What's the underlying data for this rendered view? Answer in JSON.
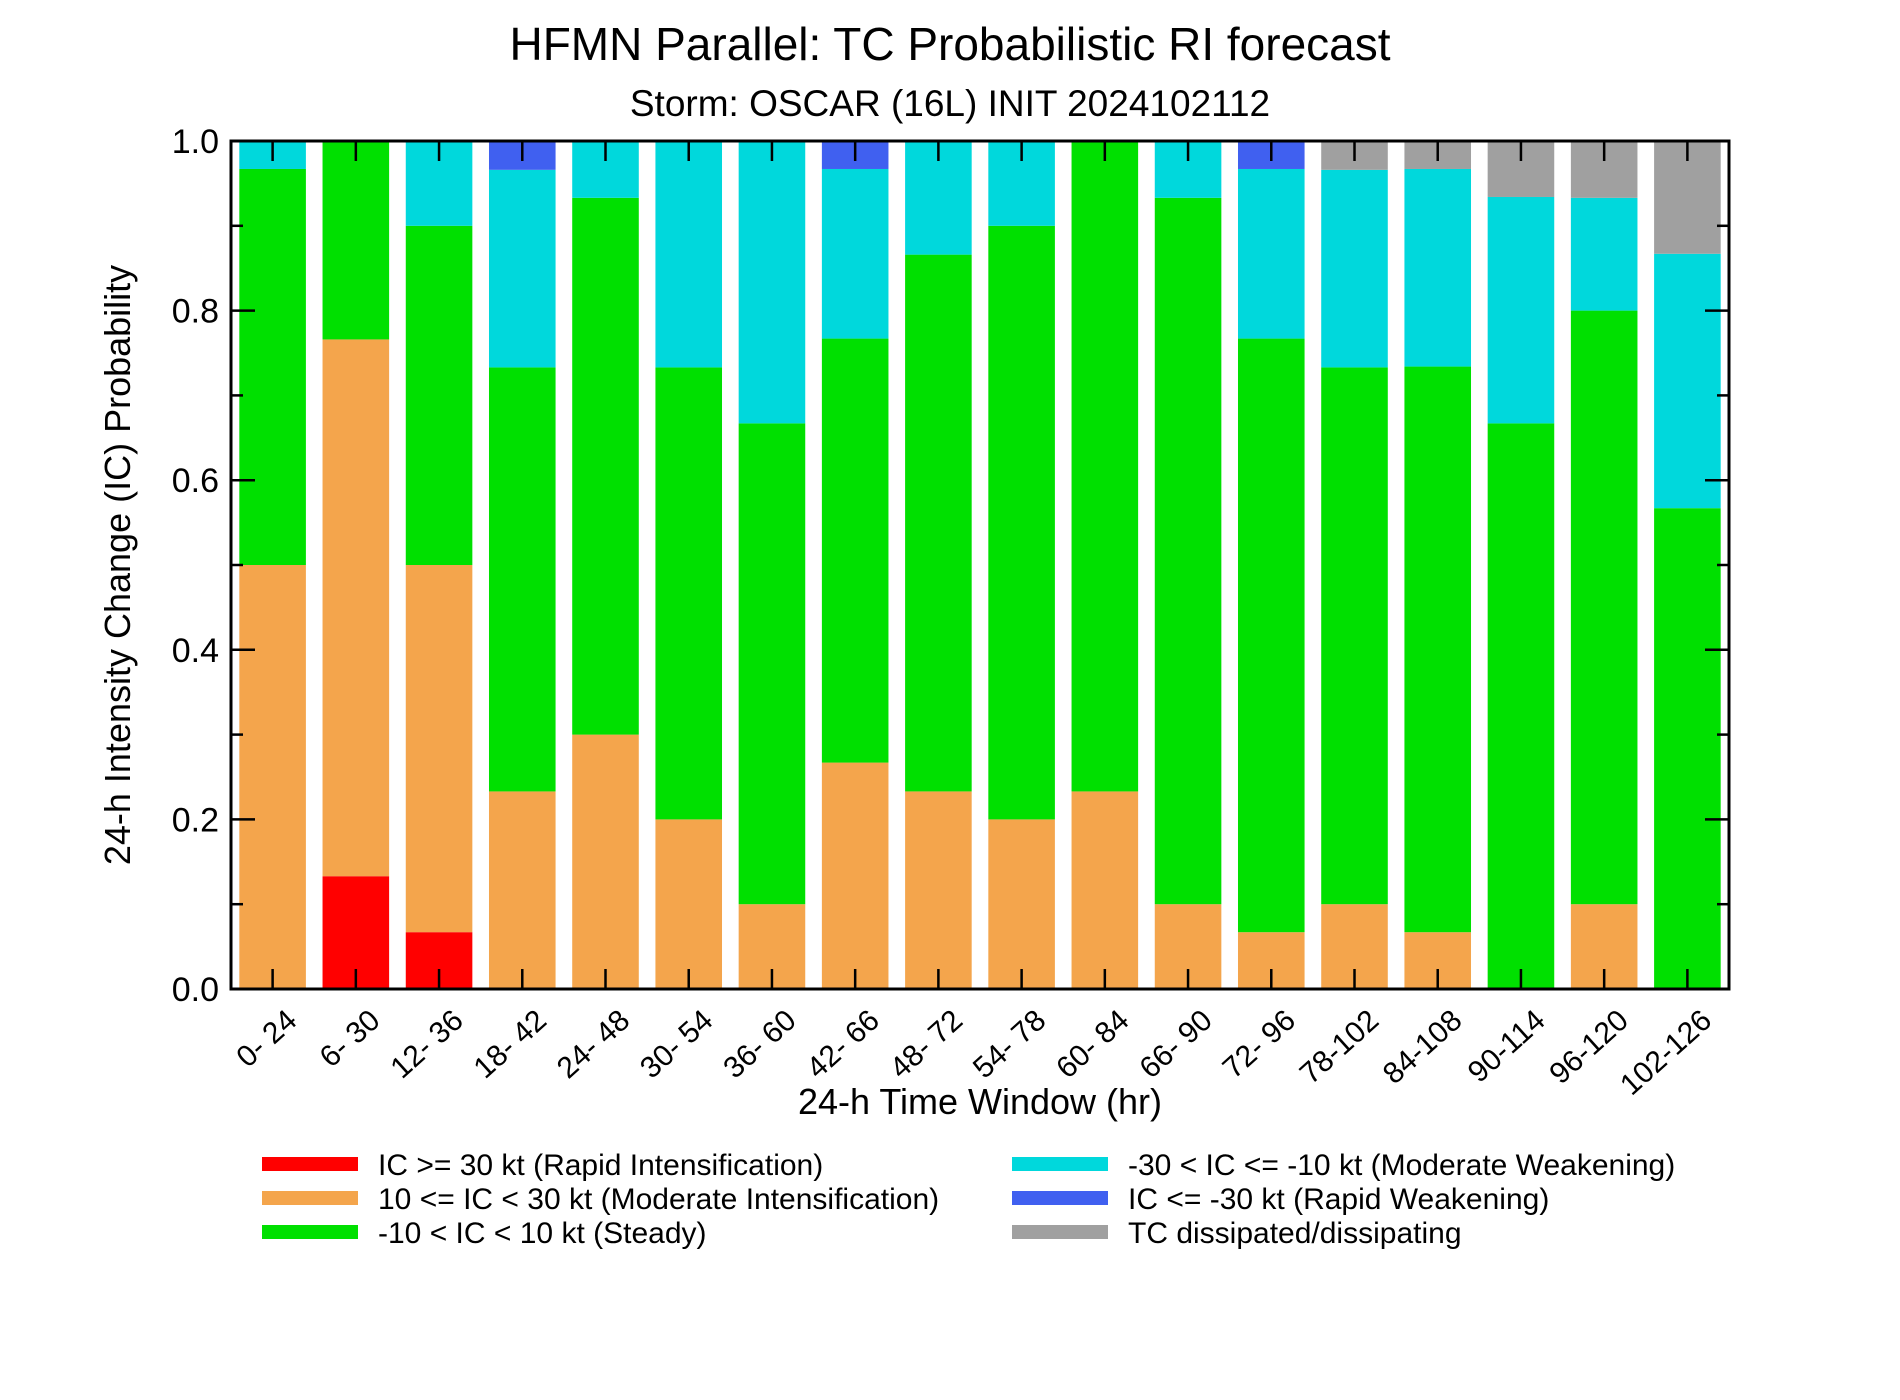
{
  "chart_data": {
    "type": "bar",
    "stacked": true,
    "title": "HFMN Parallel: TC Probabilistic RI forecast",
    "subtitle": "Storm: OSCAR (16L) INIT 2024102112",
    "xlabel": "24-h Time Window (hr)",
    "ylabel": "24-h Intensity Change (IC) Probability",
    "ylim": [
      0,
      1
    ],
    "yticks": [
      "0.0",
      "0.2",
      "0.4",
      "0.6",
      "0.8",
      "1.0"
    ],
    "legend_position": "bottom",
    "categories": [
      "0- 24",
      "6- 30",
      "12- 36",
      "18- 42",
      "24- 48",
      "30- 54",
      "36- 60",
      "42- 66",
      "48- 72",
      "54- 78",
      "60- 84",
      "66- 90",
      "72- 96",
      "78-102",
      "84-108",
      "90-114",
      "96-120",
      "102-126"
    ],
    "series": [
      {
        "name": "IC >= 30 kt (Rapid Intensification)",
        "color": "#ff0000",
        "values": [
          0,
          0.133,
          0.067,
          0,
          0,
          0,
          0,
          0,
          0,
          0,
          0,
          0,
          0,
          0,
          0,
          0,
          0,
          0
        ]
      },
      {
        "name": "10 <= IC < 30 kt (Moderate Intensification)",
        "color": "#f4a54c",
        "values": [
          0.5,
          0.633,
          0.433,
          0.233,
          0.3,
          0.2,
          0.1,
          0.267,
          0.233,
          0.2,
          0.233,
          0.1,
          0.067,
          0.1,
          0.067,
          0,
          0.1,
          0
        ]
      },
      {
        "name": "-10 < IC < 10 kt (Steady)",
        "color": "#00e000",
        "values": [
          0.467,
          0.233,
          0.4,
          0.5,
          0.633,
          0.533,
          0.567,
          0.5,
          0.633,
          0.7,
          0.767,
          0.833,
          0.7,
          0.633,
          0.667,
          0.667,
          0.7,
          0.567
        ]
      },
      {
        "name": "-30 < IC <= -10 kt (Moderate Weakening)",
        "color": "#00d8dc",
        "values": [
          0.033,
          0,
          0.1,
          0.233,
          0.067,
          0.267,
          0.333,
          0.2,
          0.133,
          0.1,
          0,
          0.067,
          0.2,
          0.233,
          0.233,
          0.267,
          0.133,
          0.3
        ]
      },
      {
        "name": "IC <= -30 kt (Rapid Weakening)",
        "color": "#4060f0",
        "values": [
          0,
          0,
          0,
          0.033,
          0,
          0,
          0,
          0.033,
          0,
          0,
          0,
          0,
          0.033,
          0,
          0,
          0,
          0,
          0
        ]
      },
      {
        "name": "TC dissipated/dissipating",
        "color": "#a0a0a0",
        "values": [
          0,
          0,
          0,
          0,
          0,
          0,
          0,
          0,
          0,
          0,
          0,
          0,
          0,
          0.033,
          0.033,
          0.067,
          0.067,
          0.133
        ]
      }
    ]
  }
}
